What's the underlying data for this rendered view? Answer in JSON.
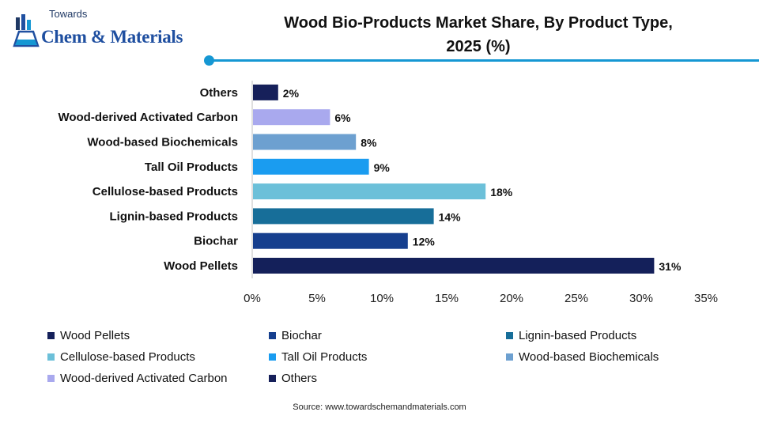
{
  "logo": {
    "small_text": "Towards",
    "big_text": "Chem & Materials"
  },
  "chart_data": {
    "type": "bar",
    "orientation": "horizontal",
    "title_line1": "Wood Bio-Products Market Share, By Product Type,",
    "title_line2": "2025 (%)",
    "categories": [
      "Wood Pellets",
      "Biochar",
      "Lignin-based Products",
      "Cellulose-based Products",
      "Tall Oil Products",
      "Wood-based Biochemicals",
      "Wood-derived Activated Carbon",
      "Others"
    ],
    "values": [
      31,
      12,
      14,
      18,
      9,
      8,
      6,
      2
    ],
    "value_labels": [
      "31%",
      "12%",
      "14%",
      "18%",
      "9%",
      "8%",
      "6%",
      "2%"
    ],
    "colors": [
      "#14205a",
      "#163f8e",
      "#176e99",
      "#6cc0d9",
      "#1a9cf0",
      "#6da0d0",
      "#a9a9ee",
      "#16205a"
    ],
    "xlim": [
      0,
      35
    ],
    "xticks": [
      "0%",
      "5%",
      "10%",
      "15%",
      "20%",
      "25%",
      "30%",
      "35%"
    ],
    "grid": false,
    "legend_position": "bottom"
  },
  "source": "Source: www.towardschemandmaterials.com"
}
